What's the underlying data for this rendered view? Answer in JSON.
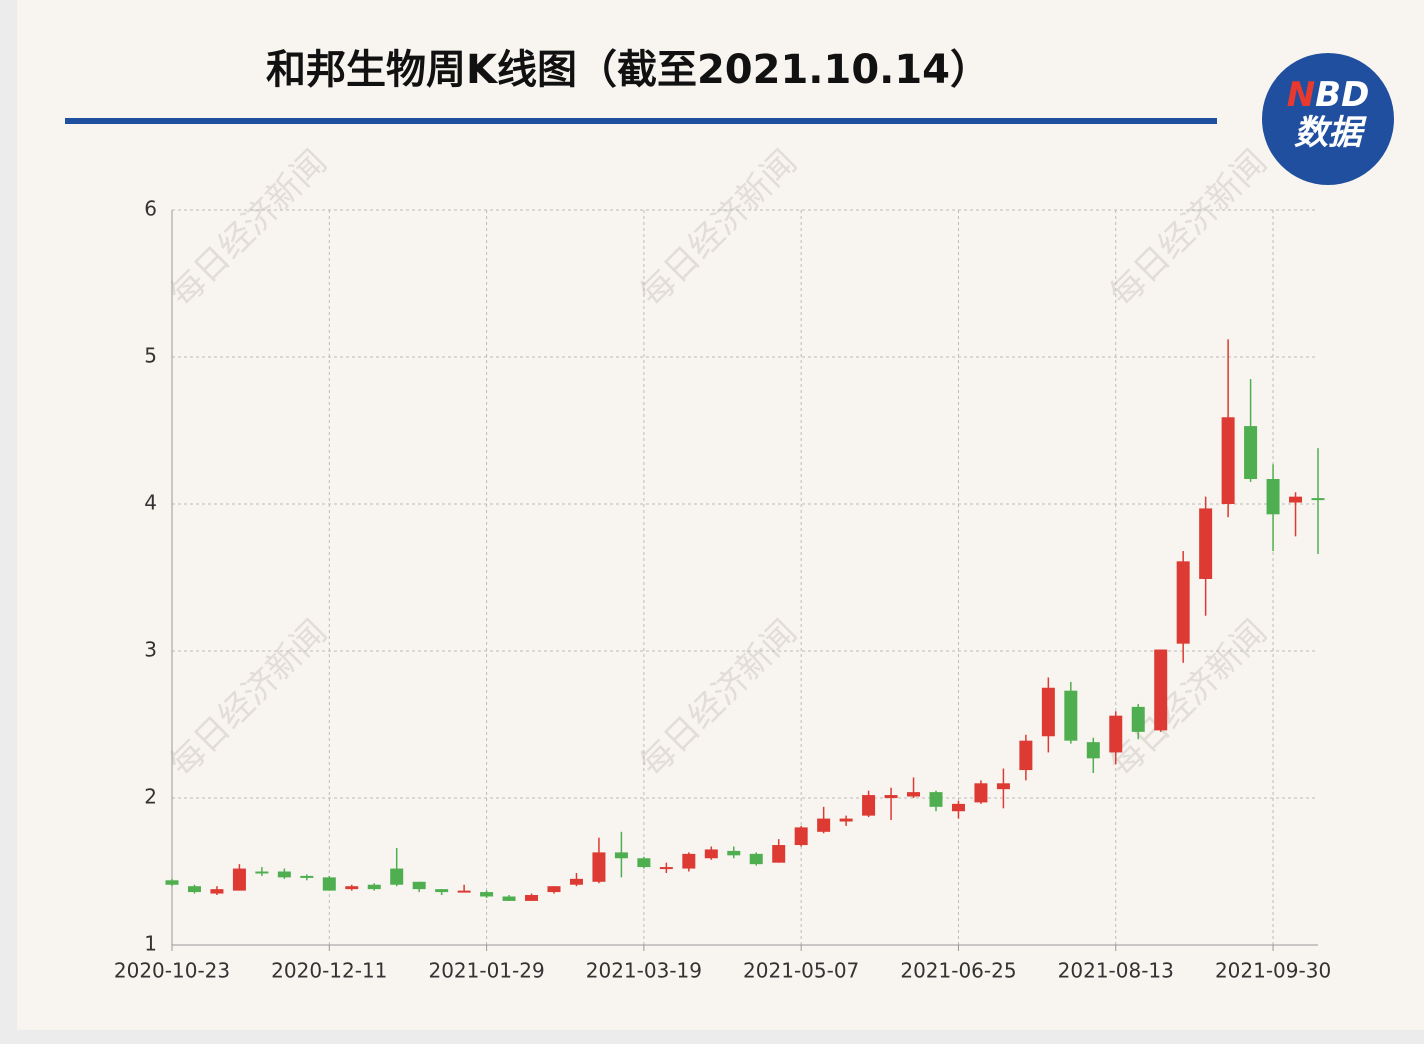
{
  "chart_data": {
    "type": "candlestick",
    "title": "和邦生物周K线图（截至2021.10.14）",
    "categories": [
      "2020-10-23",
      null,
      null,
      null,
      null,
      null,
      null,
      "2020-12-11",
      null,
      null,
      null,
      null,
      null,
      null,
      "2021-01-29",
      null,
      null,
      null,
      null,
      null,
      null,
      "2021-03-19",
      null,
      null,
      null,
      null,
      null,
      null,
      "2021-05-07",
      null,
      null,
      null,
      null,
      null,
      null,
      "2021-06-25",
      null,
      null,
      null,
      null,
      null,
      null,
      "2021-08-13",
      null,
      null,
      null,
      null,
      null,
      null,
      "2021-09-30",
      null,
      null
    ],
    "open": [
      1.44,
      1.4,
      1.35,
      1.37,
      1.5,
      1.5,
      1.47,
      1.46,
      1.38,
      1.41,
      1.52,
      1.43,
      1.38,
      1.36,
      1.36,
      1.33,
      1.3,
      1.36,
      1.41,
      1.43,
      1.63,
      1.59,
      1.53,
      1.52,
      1.59,
      1.64,
      1.62,
      1.56,
      1.68,
      1.77,
      1.84,
      1.88,
      2.0,
      2.01,
      2.04,
      1.91,
      1.97,
      2.06,
      2.19,
      2.42,
      2.73,
      2.38,
      2.31,
      2.62,
      2.46,
      3.05,
      3.49,
      4.0,
      4.53,
      4.17,
      4.01,
      4.04
    ],
    "high": [
      1.45,
      1.41,
      1.4,
      1.55,
      1.53,
      1.52,
      1.48,
      1.47,
      1.41,
      1.42,
      1.66,
      1.43,
      1.38,
      1.41,
      1.37,
      1.34,
      1.35,
      1.4,
      1.49,
      1.73,
      1.77,
      1.6,
      1.56,
      1.63,
      1.67,
      1.67,
      1.63,
      1.72,
      1.81,
      1.94,
      1.88,
      2.05,
      2.07,
      2.14,
      2.05,
      1.98,
      2.12,
      2.2,
      2.43,
      2.82,
      2.79,
      2.41,
      2.59,
      2.64,
      3.01,
      3.68,
      4.05,
      5.12,
      4.85,
      4.27,
      4.08,
      4.38
    ],
    "low": [
      1.4,
      1.35,
      1.34,
      1.37,
      1.47,
      1.45,
      1.44,
      1.37,
      1.37,
      1.37,
      1.4,
      1.36,
      1.34,
      1.36,
      1.32,
      1.3,
      1.3,
      1.35,
      1.4,
      1.42,
      1.46,
      1.52,
      1.49,
      1.5,
      1.58,
      1.59,
      1.54,
      1.56,
      1.67,
      1.76,
      1.81,
      1.87,
      1.85,
      2.0,
      1.91,
      1.86,
      1.96,
      1.93,
      2.12,
      2.31,
      2.37,
      2.17,
      2.23,
      2.4,
      2.45,
      2.92,
      3.24,
      3.91,
      4.15,
      3.68,
      3.78,
      3.66
    ],
    "close": [
      1.41,
      1.36,
      1.38,
      1.52,
      1.49,
      1.46,
      1.46,
      1.37,
      1.4,
      1.38,
      1.41,
      1.38,
      1.36,
      1.37,
      1.33,
      1.3,
      1.34,
      1.4,
      1.45,
      1.63,
      1.59,
      1.53,
      1.53,
      1.62,
      1.65,
      1.61,
      1.55,
      1.68,
      1.8,
      1.86,
      1.86,
      2.02,
      2.02,
      2.04,
      1.94,
      1.96,
      2.1,
      2.1,
      2.39,
      2.75,
      2.39,
      2.27,
      2.56,
      2.45,
      3.01,
      3.61,
      3.97,
      4.59,
      4.17,
      3.93,
      4.05,
      4.03
    ],
    "up_color": "#dc3a32",
    "down_color": "#4fae4f",
    "ylim": [
      1,
      6
    ],
    "yticks": [
      1,
      2,
      3,
      4,
      5,
      6
    ],
    "grid": true
  },
  "logo": {
    "brand": "NBD",
    "text": "数据"
  },
  "watermark": "每日经济新闻"
}
